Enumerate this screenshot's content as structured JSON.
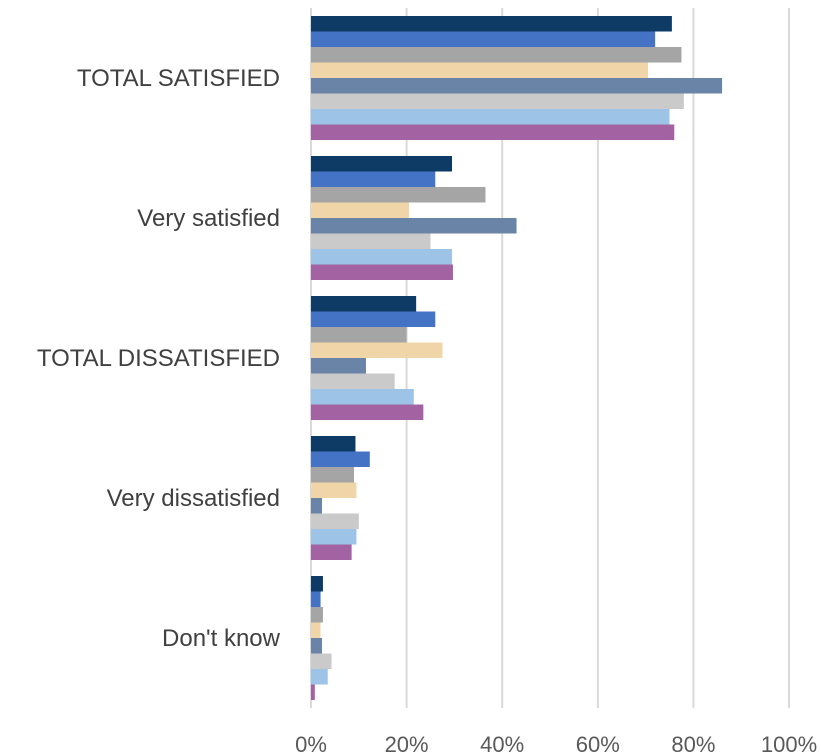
{
  "chart_data": {
    "type": "bar",
    "orientation": "horizontal",
    "title": "",
    "xlabel": "",
    "ylabel": "",
    "xlim": [
      0,
      100
    ],
    "x_ticks": [
      "0%",
      "20%",
      "40%",
      "60%",
      "80%",
      "100%"
    ],
    "grid": true,
    "legend": "none",
    "categories": [
      "TOTAL SATISFIED",
      "Very satisfied",
      "TOTAL DISSATISFIED",
      "Very dissatisfied",
      "Don't know"
    ],
    "series": [
      {
        "color": "#0e3a66",
        "values": [
          75.5,
          29.5,
          22,
          9.3,
          2.5
        ]
      },
      {
        "color": "#4472c4",
        "values": [
          72,
          26,
          26,
          12.3,
          2
        ]
      },
      {
        "color": "#a5a5a5",
        "values": [
          77.5,
          36.5,
          20,
          9,
          2.5
        ]
      },
      {
        "color": "#f0d5a8",
        "values": [
          70.5,
          20.5,
          27.5,
          9.5,
          2
        ]
      },
      {
        "color": "#6a84a8",
        "values": [
          86,
          43,
          11.5,
          2.3,
          2.3
        ]
      },
      {
        "color": "#cacaca",
        "values": [
          78,
          25,
          17.5,
          10,
          4.3
        ]
      },
      {
        "color": "#9dc3e6",
        "values": [
          75,
          29.5,
          21.5,
          9.5,
          3.5
        ]
      },
      {
        "color": "#a363a3",
        "values": [
          76,
          29.7,
          23.5,
          8.5,
          0.8
        ]
      }
    ]
  }
}
